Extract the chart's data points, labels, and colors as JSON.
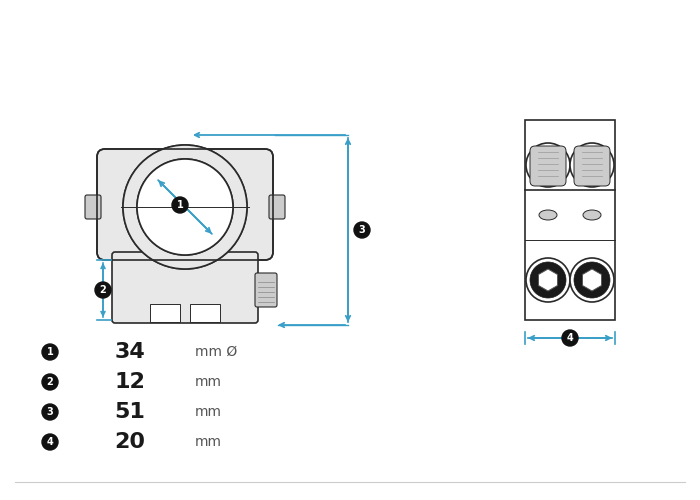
{
  "bg_color": "#ffffff",
  "line_color": "#2a2a2a",
  "blue_color": "#3a9fc8",
  "label_bg": "#111111",
  "label_fg": "#ffffff",
  "gray_fill": "#e8e8e8",
  "gray_mid": "#cccccc",
  "gray_dark": "#aaaaaa",
  "measurements": [
    {
      "num": "1",
      "value": "34",
      "unit": "mm Ø"
    },
    {
      "num": "2",
      "value": "12",
      "unit": "mm"
    },
    {
      "num": "3",
      "value": "51",
      "unit": "mm"
    },
    {
      "num": "4",
      "value": "20",
      "unit": "mm"
    }
  ]
}
